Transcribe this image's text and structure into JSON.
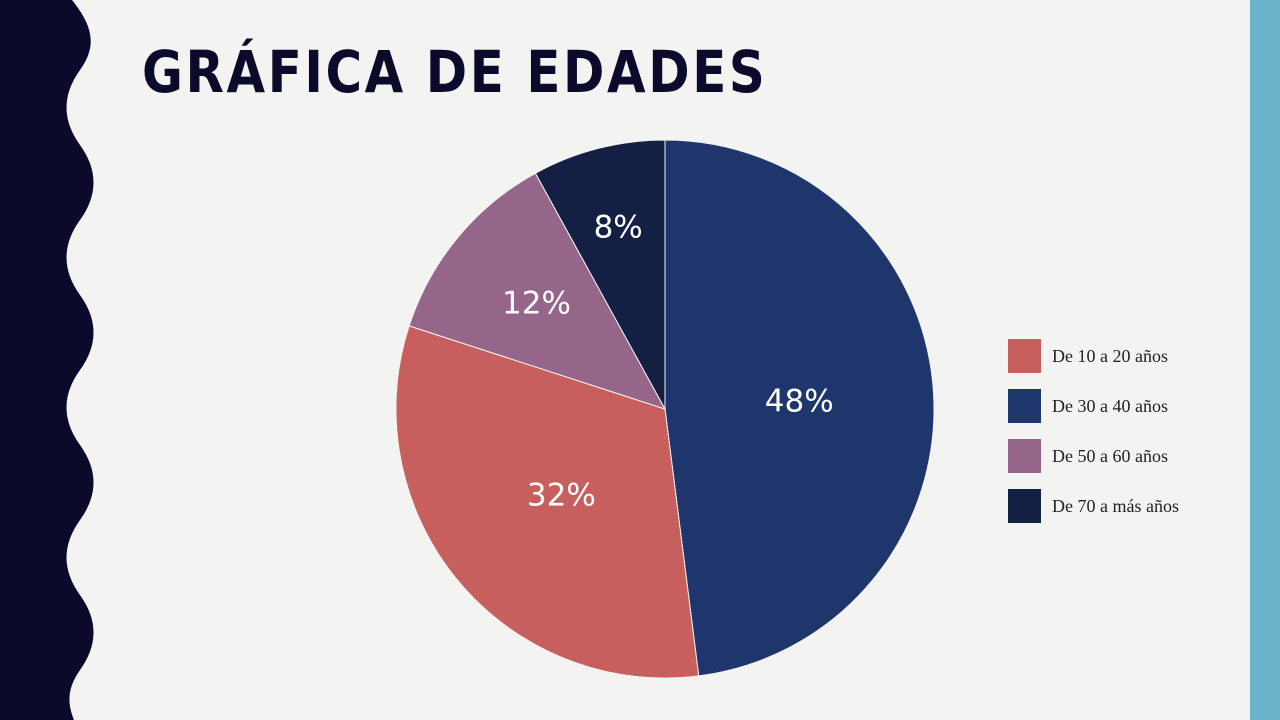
{
  "title": "GRÁFICA DE EDADES",
  "colors": {
    "background": "#f3f3f1",
    "left_band": "#0b0a2a",
    "right_band": "#6ab3c8",
    "title": "#0b0a2a"
  },
  "chart_data": {
    "type": "pie",
    "title": "",
    "legend_position": "right",
    "slices": [
      {
        "label": "De 10 a 20 años",
        "value": 32,
        "display": "32%",
        "color": "#c65f5e"
      },
      {
        "label": "De 30 a 40 años",
        "value": 48,
        "display": "48%",
        "color": "#1e366b"
      },
      {
        "label": "De 50 a 60 años",
        "value": 12,
        "display": "12%",
        "color": "#96658a"
      },
      {
        "label": "De 70 a más años",
        "value": 8,
        "display": "8%",
        "color": "#132043"
      }
    ]
  }
}
